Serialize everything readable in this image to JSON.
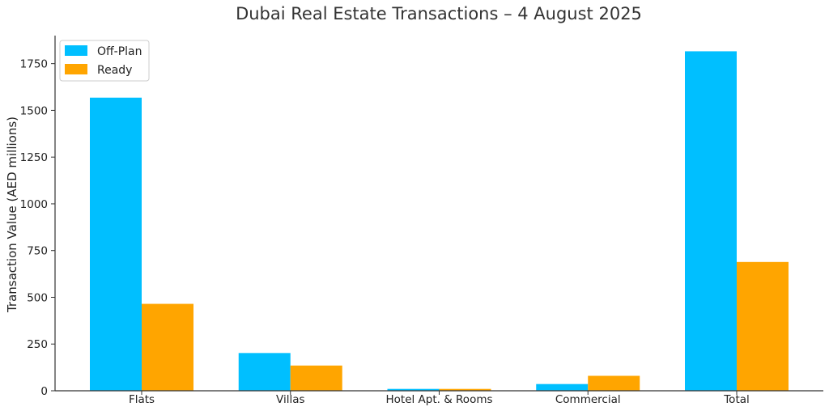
{
  "chart_data": {
    "type": "bar",
    "title": "Dubai Real Estate Transactions – 4 August 2025",
    "xlabel": "",
    "ylabel": "Transaction Value (AED millions)",
    "categories": [
      "Flats",
      "Villas",
      "Hotel Apt. & Rooms",
      "Commercial",
      "Total"
    ],
    "series": [
      {
        "name": "Off-Plan",
        "color": "#00bfff",
        "values": [
          1568,
          202,
          10,
          36,
          1816
        ]
      },
      {
        "name": "Ready",
        "color": "#ffa500",
        "values": [
          465,
          135,
          10,
          80,
          689
        ]
      }
    ],
    "ylim": [
      0,
      1900
    ],
    "yticks": [
      0,
      250,
      500,
      750,
      1000,
      1250,
      1500,
      1750
    ],
    "grid": false,
    "legend": "top-left"
  }
}
